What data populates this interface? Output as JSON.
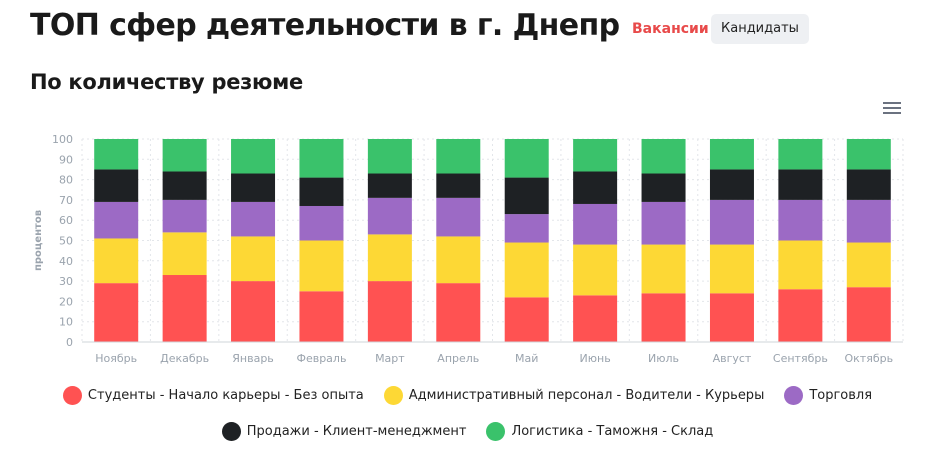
{
  "header": {
    "title": "ТОП сфер деятельности в г. Днепр",
    "tab_active": "Вакансии",
    "tab_inactive": "Кандидаты"
  },
  "section_title": "По количеству резюме",
  "menu_icon": "hamburger-menu-icon",
  "chart_data": {
    "type": "bar",
    "stacked": true,
    "categories": [
      "Ноябрь",
      "Декабрь",
      "Январь",
      "Февраль",
      "Март",
      "Апрель",
      "Май",
      "Июнь",
      "Июль",
      "Август",
      "Сентябрь",
      "Октябрь"
    ],
    "ylabel": "процентов",
    "ylim": [
      0,
      100
    ],
    "yticks": [
      0,
      10,
      20,
      30,
      40,
      50,
      60,
      70,
      80,
      90,
      100
    ],
    "grid": true,
    "legend_position": "bottom",
    "series": [
      {
        "name": "Студенты - Начало карьеры - Без опыта",
        "color": "#ff5252",
        "values": [
          29,
          33,
          30,
          25,
          30,
          29,
          22,
          23,
          24,
          24,
          26,
          27
        ]
      },
      {
        "name": "Административный персонал - Водители - Курьеры",
        "color": "#fdd835",
        "values": [
          22,
          21,
          22,
          25,
          23,
          23,
          27,
          25,
          24,
          24,
          24,
          22
        ]
      },
      {
        "name": "Торговля",
        "color": "#9c6ac5",
        "values": [
          18,
          16,
          17,
          17,
          18,
          19,
          14,
          20,
          21,
          22,
          20,
          21
        ]
      },
      {
        "name": "Продажи - Клиент-менеджмент",
        "color": "#1e2124",
        "values": [
          16,
          14,
          14,
          14,
          12,
          12,
          18,
          16,
          14,
          15,
          15,
          15
        ]
      },
      {
        "name": "Логистика - Таможня - Склад",
        "color": "#3ac26b",
        "values": [
          15,
          16,
          17,
          19,
          17,
          17,
          19,
          16,
          17,
          15,
          15,
          15
        ]
      }
    ]
  }
}
